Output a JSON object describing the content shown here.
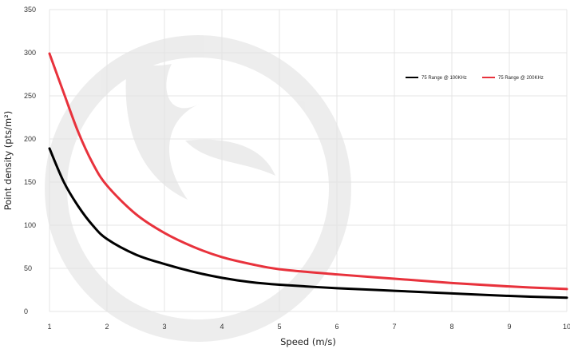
{
  "chart_data": {
    "type": "line",
    "title": "",
    "xlabel": "Speed (m/s)",
    "ylabel": "Point density (pts/m²)",
    "xlim": [
      1,
      10
    ],
    "ylim": [
      0,
      350
    ],
    "x_ticks": [
      "1",
      "2",
      "3",
      "4",
      "5",
      "6",
      "7",
      "8",
      "9",
      "10"
    ],
    "y_ticks": [
      "0",
      "50",
      "100",
      "150",
      "200",
      "250",
      "300",
      "350"
    ],
    "grid": true,
    "legend_position": "top-right",
    "series": [
      {
        "name": "75 Range @ 100KHz",
        "color": "#000000",
        "x": [
          1,
          1.25,
          1.5,
          1.75,
          2,
          2.5,
          3,
          3.5,
          4,
          4.5,
          5,
          6,
          7,
          8,
          9,
          10
        ],
        "y": [
          189,
          150,
          122,
          100,
          84,
          66,
          55,
          46,
          39,
          34,
          31,
          27,
          24,
          21,
          18,
          16
        ]
      },
      {
        "name": "75 Range @ 200KHz",
        "color": "#E8323C",
        "x": [
          1,
          1.25,
          1.5,
          1.75,
          2,
          2.5,
          3,
          3.5,
          4,
          4.5,
          5,
          6,
          7,
          8,
          9,
          10
        ],
        "y": [
          299,
          253,
          208,
          172,
          146,
          113,
          91,
          75,
          63,
          55,
          49,
          43,
          38,
          33,
          29,
          26
        ]
      }
    ]
  }
}
